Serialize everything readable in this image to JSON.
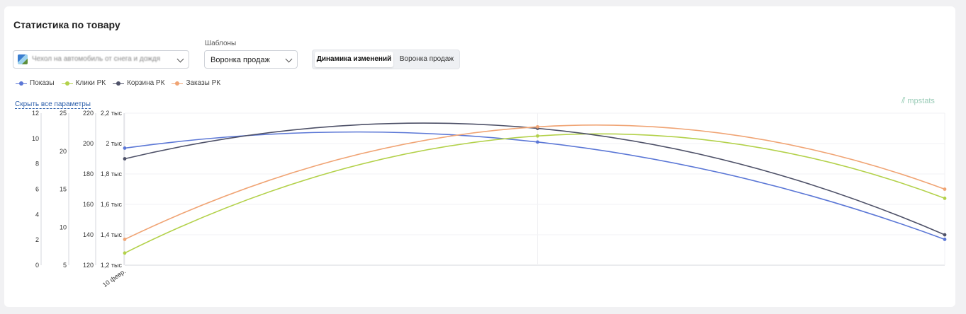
{
  "title": "Статистика по товару",
  "product_select": {
    "value": "Чехол на автомобиль от снега и дождя"
  },
  "templates": {
    "label": "Шаблоны",
    "value": "Воронка продаж"
  },
  "view_tabs": {
    "active": "Динамика изменений",
    "inactive": "Воронка продаж"
  },
  "legend": [
    {
      "label": "Показы",
      "color": "#5b77d6"
    },
    {
      "label": "Клики РК",
      "color": "#b3d14a"
    },
    {
      "label": "Корзина РК",
      "color": "#4e5168"
    },
    {
      "label": "Заказы РК",
      "color": "#f0a474"
    }
  ],
  "hide_link": "Скрыть все параметры",
  "brand": {
    "name": "mpstats",
    "icon": "mpstats-logo-icon"
  },
  "chart_data": {
    "type": "line",
    "x": [
      "10 февр.",
      "",
      ""
    ],
    "axes": [
      {
        "ticks": [
          "12",
          "10",
          "8",
          "6",
          "4",
          "2",
          "0"
        ],
        "range": [
          0,
          12
        ]
      },
      {
        "ticks": [
          "25",
          "20",
          "15",
          "10",
          "5"
        ],
        "range": [
          5,
          25
        ]
      },
      {
        "ticks": [
          "220",
          "200",
          "180",
          "160",
          "140",
          "120"
        ],
        "range": [
          120,
          220
        ]
      },
      {
        "ticks": [
          "2,2 тыс",
          "2 тыс",
          "1,8 тыс",
          "1,6 тыс",
          "1,4 тыс",
          "1,2 тыс"
        ],
        "range": [
          1200,
          2200
        ]
      }
    ],
    "series": [
      {
        "name": "Показы",
        "color": "#5b77d6",
        "values": [
          1970,
          2010,
          1370
        ]
      },
      {
        "name": "Клики РК",
        "color": "#b3d14a",
        "values": [
          1280,
          2050,
          1640
        ]
      },
      {
        "name": "Корзина РК",
        "color": "#4e5168",
        "values": [
          1900,
          2100,
          1400
        ]
      },
      {
        "name": "Заказы РК",
        "color": "#f0a474",
        "values": [
          1370,
          2110,
          1700
        ]
      }
    ],
    "grid": true
  }
}
